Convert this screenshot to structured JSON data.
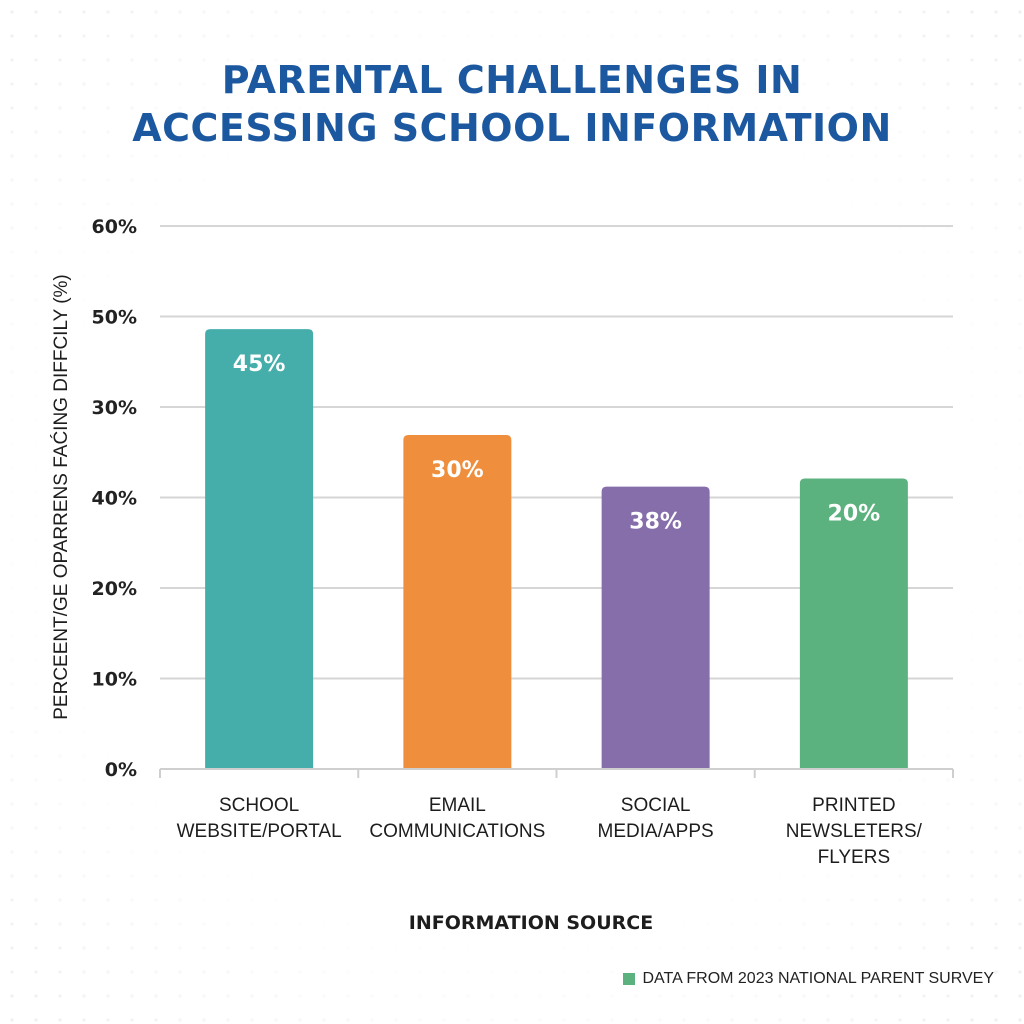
{
  "chart_data": {
    "type": "bar",
    "title": "PARENTAL CHALLENGES IN ACCESSING SCHOOL INFORMATION",
    "title_lines": [
      "PARENTAL CHALLENGES IN",
      "ACCESSING SCHOOL INFORMATION"
    ],
    "xlabel": "INFORMATION SOURCE",
    "ylabel": "PERCEENT/GE OPARRENS FAĆING DIFFCILY (%)",
    "y_tick_labels_bottom_to_top": [
      "0%",
      "10%",
      "20%",
      "40%",
      "30%",
      "50%",
      "60%"
    ],
    "ylim": [
      0,
      60
    ],
    "grid": true,
    "categories": [
      [
        "SCHOOL",
        "WEBSITE/PORTAL"
      ],
      [
        "EMAIL",
        "COMMUNICATIONS"
      ],
      [
        "SOCIAL",
        "MEDIA/APPS"
      ],
      [
        "PRINTED",
        "NEWSLETERS/",
        "FLYERS"
      ]
    ],
    "values": [
      45,
      30,
      38,
      20
    ],
    "value_labels": [
      "45%",
      "30%",
      "38%",
      "20%"
    ],
    "bar_visual_level_fraction_of_axis": [
      0.81,
      0.615,
      0.52,
      0.535
    ],
    "colors": [
      "#45aeab",
      "#ef8f3d",
      "#866eab",
      "#5bb27f"
    ],
    "legend": {
      "position": "bottom-right",
      "entries": [
        {
          "label": "DATA FROM 2023 NATIONAL PARENT SURVEY",
          "color": "#5bb27f"
        }
      ]
    }
  },
  "theme": {
    "title_color": "#1c58a0",
    "grid_color": "#d6d6d6",
    "text_color": "#1d1d1d"
  }
}
